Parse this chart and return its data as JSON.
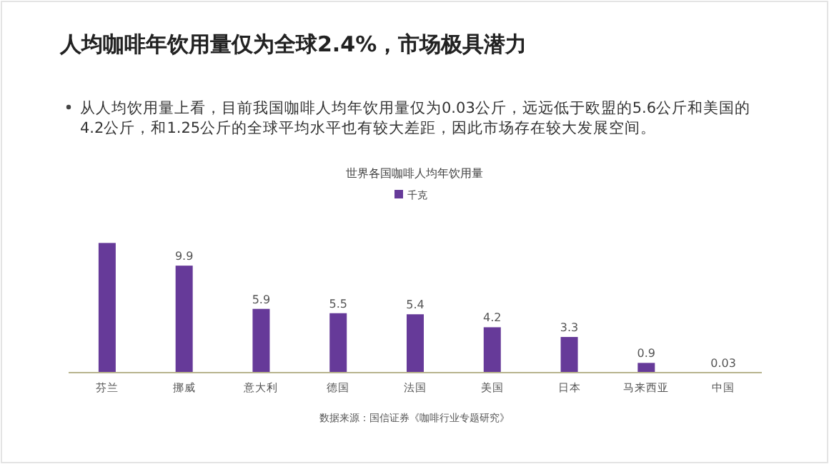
{
  "chart_data": {
    "type": "bar",
    "title": "人均咖啡年饮用量仅为全球2.4%，市场极具潜力",
    "subtitle": "从人均饮用量上看，目前我国咖啡人均年饮用量仅为0.03公斤，远远低于欧盟的5.6公斤和美国的4.2公斤，和1.25公斤的全球平均水平也有较大差距，因此市场存在较大发展空间。",
    "annotations": [
      "世界各国咖啡人均年饮用量",
      "数据来源：国信证券《咖啡行业专题研究》"
    ],
    "categories": [
      "芬兰",
      "挪威",
      "意大利",
      "德国",
      "法国",
      "美国",
      "日本",
      "马来西亚",
      "中国"
    ],
    "series": [
      {
        "name": "千克",
        "color": "#663a99",
        "values": [
          12,
          9.9,
          5.9,
          5.5,
          5.4,
          4.2,
          3.3,
          0.9,
          0.03
        ],
        "value_labels": [
          null,
          "9.9",
          "5.9",
          "5.5",
          "5.4",
          "4.2",
          "3.3",
          "0.9",
          "0.03"
        ]
      }
    ],
    "legend": "top"
  }
}
